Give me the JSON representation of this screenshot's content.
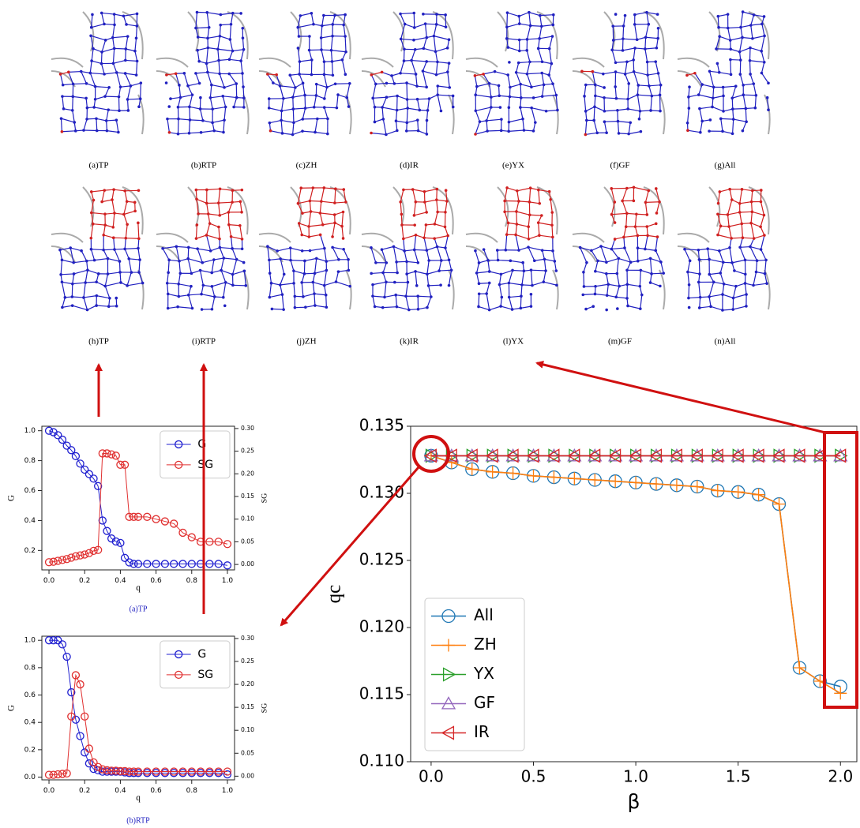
{
  "panels": [
    "(a)TP",
    "(b)RTP",
    "(c)ZH",
    "(d)IR",
    "(e)YX",
    "(f)GF",
    "(g)All",
    "(h)TP",
    "(i)RTP",
    "(j)ZH",
    "(k)IR",
    "(l)YX",
    "(m)GF",
    "(n)All"
  ],
  "chart_data": [
    {
      "type": "line",
      "x_label": "β",
      "y_label": "qc",
      "legend": "lower left",
      "grid": false,
      "x": [
        0,
        0.1,
        0.2,
        0.3,
        0.4,
        0.5,
        0.6,
        0.7,
        0.8,
        0.9,
        1,
        1.1,
        1.2,
        1.3,
        1.4,
        1.5,
        1.6,
        1.7,
        1.8,
        1.9,
        2
      ],
      "xlim": [
        -0.1,
        2.08
      ],
      "ylim": [
        0.11,
        0.135
      ],
      "xticks": [
        {
          "value": 0,
          "label": "0.0"
        },
        0.5,
        {
          "value": 1,
          "label": "1.0"
        },
        1.5,
        {
          "value": 2,
          "label": "2.0"
        }
      ],
      "yticks": [
        {
          "value": 0.11,
          "label": "0.110"
        },
        0.115,
        {
          "value": 0.12,
          "label": "0.120"
        },
        0.125,
        {
          "value": 0.13,
          "label": "0.130"
        },
        0.135
      ],
      "series": [
        {
          "name": "All",
          "color": "#1f77b4",
          "marker": "o",
          "values": [
            0.1328,
            0.1323,
            0.1318,
            0.1316,
            0.1315,
            0.1313,
            0.1312,
            0.1311,
            0.131,
            0.1309,
            0.1308,
            0.1307,
            0.1306,
            0.1305,
            0.1302,
            0.1301,
            0.1299,
            0.1292,
            0.117,
            0.116,
            0.1156
          ]
        },
        {
          "name": "ZH",
          "color": "#ff7f0e",
          "marker": "+",
          "values": [
            0.1328,
            0.1323,
            0.1318,
            0.1316,
            0.1315,
            0.1313,
            0.1312,
            0.1311,
            0.131,
            0.1309,
            0.1308,
            0.1307,
            0.1306,
            0.1305,
            0.1302,
            0.1301,
            0.1299,
            0.1292,
            0.117,
            0.116,
            0.1151
          ]
        },
        {
          "name": "YX",
          "color": "#2ca02c",
          "marker": ">",
          "values": [
            0.1328,
            0.1328,
            0.1328,
            0.1328,
            0.1328,
            0.1328,
            0.1328,
            0.1328,
            0.1328,
            0.1328,
            0.1328,
            0.1328,
            0.1328,
            0.1328,
            0.1328,
            0.1328,
            0.1328,
            0.1328,
            0.1328,
            0.1328,
            0.1328
          ]
        },
        {
          "name": "GF",
          "color": "#9467bd",
          "marker": "^",
          "values": [
            0.1328,
            0.1328,
            0.1328,
            0.1328,
            0.1328,
            0.1328,
            0.1328,
            0.1328,
            0.1328,
            0.1328,
            0.1328,
            0.1328,
            0.1328,
            0.1328,
            0.1328,
            0.1328,
            0.1328,
            0.1328,
            0.1328,
            0.1328,
            0.1328
          ]
        },
        {
          "name": "IR",
          "color": "#d62728",
          "marker": "<",
          "values": [
            0.1328,
            0.1328,
            0.1328,
            0.1328,
            0.1328,
            0.1328,
            0.1328,
            0.1328,
            0.1328,
            0.1328,
            0.1328,
            0.1328,
            0.1328,
            0.1328,
            0.1328,
            0.1328,
            0.1328,
            0.1328,
            0.1328,
            0.1328,
            0.1328
          ]
        }
      ]
    },
    {
      "type": "line",
      "caption": "(a)TP",
      "x_label": "q",
      "y_label": "G",
      "y2_label": "SG",
      "legend": "upper right",
      "x": [
        0,
        0.025,
        0.05,
        0.075,
        0.1,
        0.125,
        0.15,
        0.175,
        0.2,
        0.225,
        0.25,
        0.275,
        0.3,
        0.325,
        0.35,
        0.375,
        0.4,
        0.425,
        0.45,
        0.475,
        0.5,
        0.55,
        0.6,
        0.65,
        0.7,
        0.75,
        0.8,
        0.85,
        0.9,
        0.95,
        1
      ],
      "xlim": [
        -0.04,
        1.04
      ],
      "ylim": [
        0.07,
        1.03
      ],
      "y2lim": [
        -0.012,
        0.305
      ],
      "xticks": [
        {
          "value": 0,
          "label": "0.0"
        },
        0.2,
        0.4,
        0.6,
        0.8,
        {
          "value": 1,
          "label": "1.0"
        }
      ],
      "yticks": [
        0.2,
        0.4,
        0.6,
        0.8,
        {
          "value": 1,
          "label": "1.0"
        }
      ],
      "y2ticks": [
        {
          "value": 0,
          "label": "0.00"
        },
        0.05,
        {
          "value": 0.1,
          "label": "0.10"
        },
        0.15,
        {
          "value": 0.2,
          "label": "0.20"
        },
        0.25,
        {
          "value": 0.3,
          "label": "0.30"
        }
      ],
      "series": [
        {
          "name": "G",
          "color": "#2020d0",
          "marker": "o",
          "values": [
            1,
            0.99,
            0.97,
            0.94,
            0.9,
            0.87,
            0.83,
            0.78,
            0.74,
            0.71,
            0.68,
            0.63,
            0.4,
            0.33,
            0.28,
            0.26,
            0.25,
            0.15,
            0.12,
            0.11,
            0.11,
            0.11,
            0.11,
            0.11,
            0.11,
            0.11,
            0.11,
            0.11,
            0.11,
            0.11,
            0.1
          ]
        },
        {
          "name": "SG",
          "color": "#e03030",
          "marker": "o",
          "axis": "y2",
          "values": [
            0.005,
            0.006,
            0.008,
            0.01,
            0.012,
            0.015,
            0.018,
            0.02,
            0.022,
            0.025,
            0.03,
            0.032,
            0.245,
            0.245,
            0.243,
            0.24,
            0.22,
            0.22,
            0.105,
            0.105,
            0.105,
            0.105,
            0.1,
            0.095,
            0.09,
            0.07,
            0.06,
            0.05,
            0.05,
            0.05,
            0.045
          ]
        }
      ]
    },
    {
      "type": "line",
      "caption": "(b)RTP",
      "x_label": "q",
      "y_label": "G",
      "y2_label": "SG",
      "legend": "upper right",
      "x": [
        0,
        0.025,
        0.05,
        0.075,
        0.1,
        0.125,
        0.15,
        0.175,
        0.2,
        0.225,
        0.25,
        0.275,
        0.3,
        0.325,
        0.35,
        0.375,
        0.4,
        0.425,
        0.45,
        0.475,
        0.5,
        0.55,
        0.6,
        0.65,
        0.7,
        0.75,
        0.8,
        0.85,
        0.9,
        0.95,
        1
      ],
      "xlim": [
        -0.04,
        1.04
      ],
      "ylim": [
        -0.02,
        1.03
      ],
      "y2lim": [
        -0.008,
        0.305
      ],
      "xticks": [
        {
          "value": 0,
          "label": "0.0"
        },
        0.2,
        0.4,
        0.6,
        0.8,
        {
          "value": 1,
          "label": "1.0"
        }
      ],
      "yticks": [
        {
          "value": 0,
          "label": "0.0"
        },
        0.2,
        0.4,
        0.6,
        0.8,
        {
          "value": 1,
          "label": "1.0"
        }
      ],
      "y2ticks": [
        {
          "value": 0,
          "label": "0.00"
        },
        0.05,
        {
          "value": 0.1,
          "label": "0.10"
        },
        0.15,
        {
          "value": 0.2,
          "label": "0.20"
        },
        0.25,
        {
          "value": 0.3,
          "label": "0.30"
        }
      ],
      "series": [
        {
          "name": "G",
          "color": "#2020d0",
          "marker": "o",
          "values": [
            1,
            1,
            1,
            0.97,
            0.88,
            0.62,
            0.42,
            0.3,
            0.18,
            0.1,
            0.06,
            0.05,
            0.04,
            0.04,
            0.04,
            0.04,
            0.04,
            0.035,
            0.03,
            0.03,
            0.03,
            0.03,
            0.03,
            0.03,
            0.03,
            0.03,
            0.03,
            0.03,
            0.03,
            0.03,
            0.02
          ]
        },
        {
          "name": "SG",
          "color": "#e03030",
          "marker": "o",
          "axis": "y2",
          "values": [
            0.003,
            0.003,
            0.004,
            0.005,
            0.006,
            0.13,
            0.22,
            0.2,
            0.13,
            0.06,
            0.03,
            0.02,
            0.015,
            0.013,
            0.012,
            0.012,
            0.011,
            0.011,
            0.01,
            0.01,
            0.01,
            0.01,
            0.01,
            0.01,
            0.01,
            0.01,
            0.01,
            0.01,
            0.01,
            0.01,
            0.01
          ]
        }
      ]
    }
  ]
}
